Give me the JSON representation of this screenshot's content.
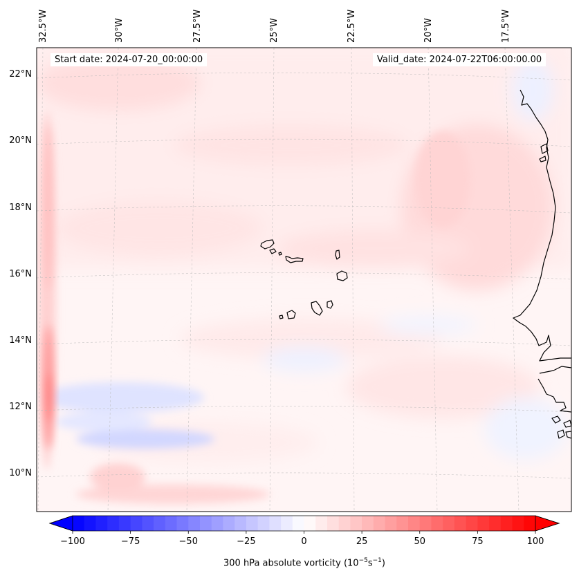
{
  "map": {
    "start_date_label": "Start date: 2024-07-20_00:00:00",
    "valid_date_label": "Valid_date: 2024-07-22T06:00:00.00",
    "longitude_labels": [
      "32.5°W",
      "30°W",
      "27.5°W",
      "25°W",
      "22.5°W",
      "20°W",
      "17.5°W"
    ],
    "latitude_labels": [
      "22°N",
      "20°N",
      "18°N",
      "16°N",
      "14°N",
      "12°N",
      "10°N"
    ],
    "regions": [
      "Cape Verde Islands",
      "West African coast"
    ]
  },
  "colorbar": {
    "title_prefix": "300 hPa absolute vorticity (10",
    "title_exp1": "−5",
    "title_mid": "s",
    "title_exp2": "−1",
    "title_suffix": ")",
    "tick_labels": [
      "−100",
      "−75",
      "−50",
      "−25",
      "0",
      "25",
      "50",
      "75",
      "100"
    ],
    "min": -100,
    "max": 100,
    "colormap": "bwr",
    "low_color": "#0000ff",
    "mid_color": "#ffffff",
    "high_color": "#ff0000"
  }
}
